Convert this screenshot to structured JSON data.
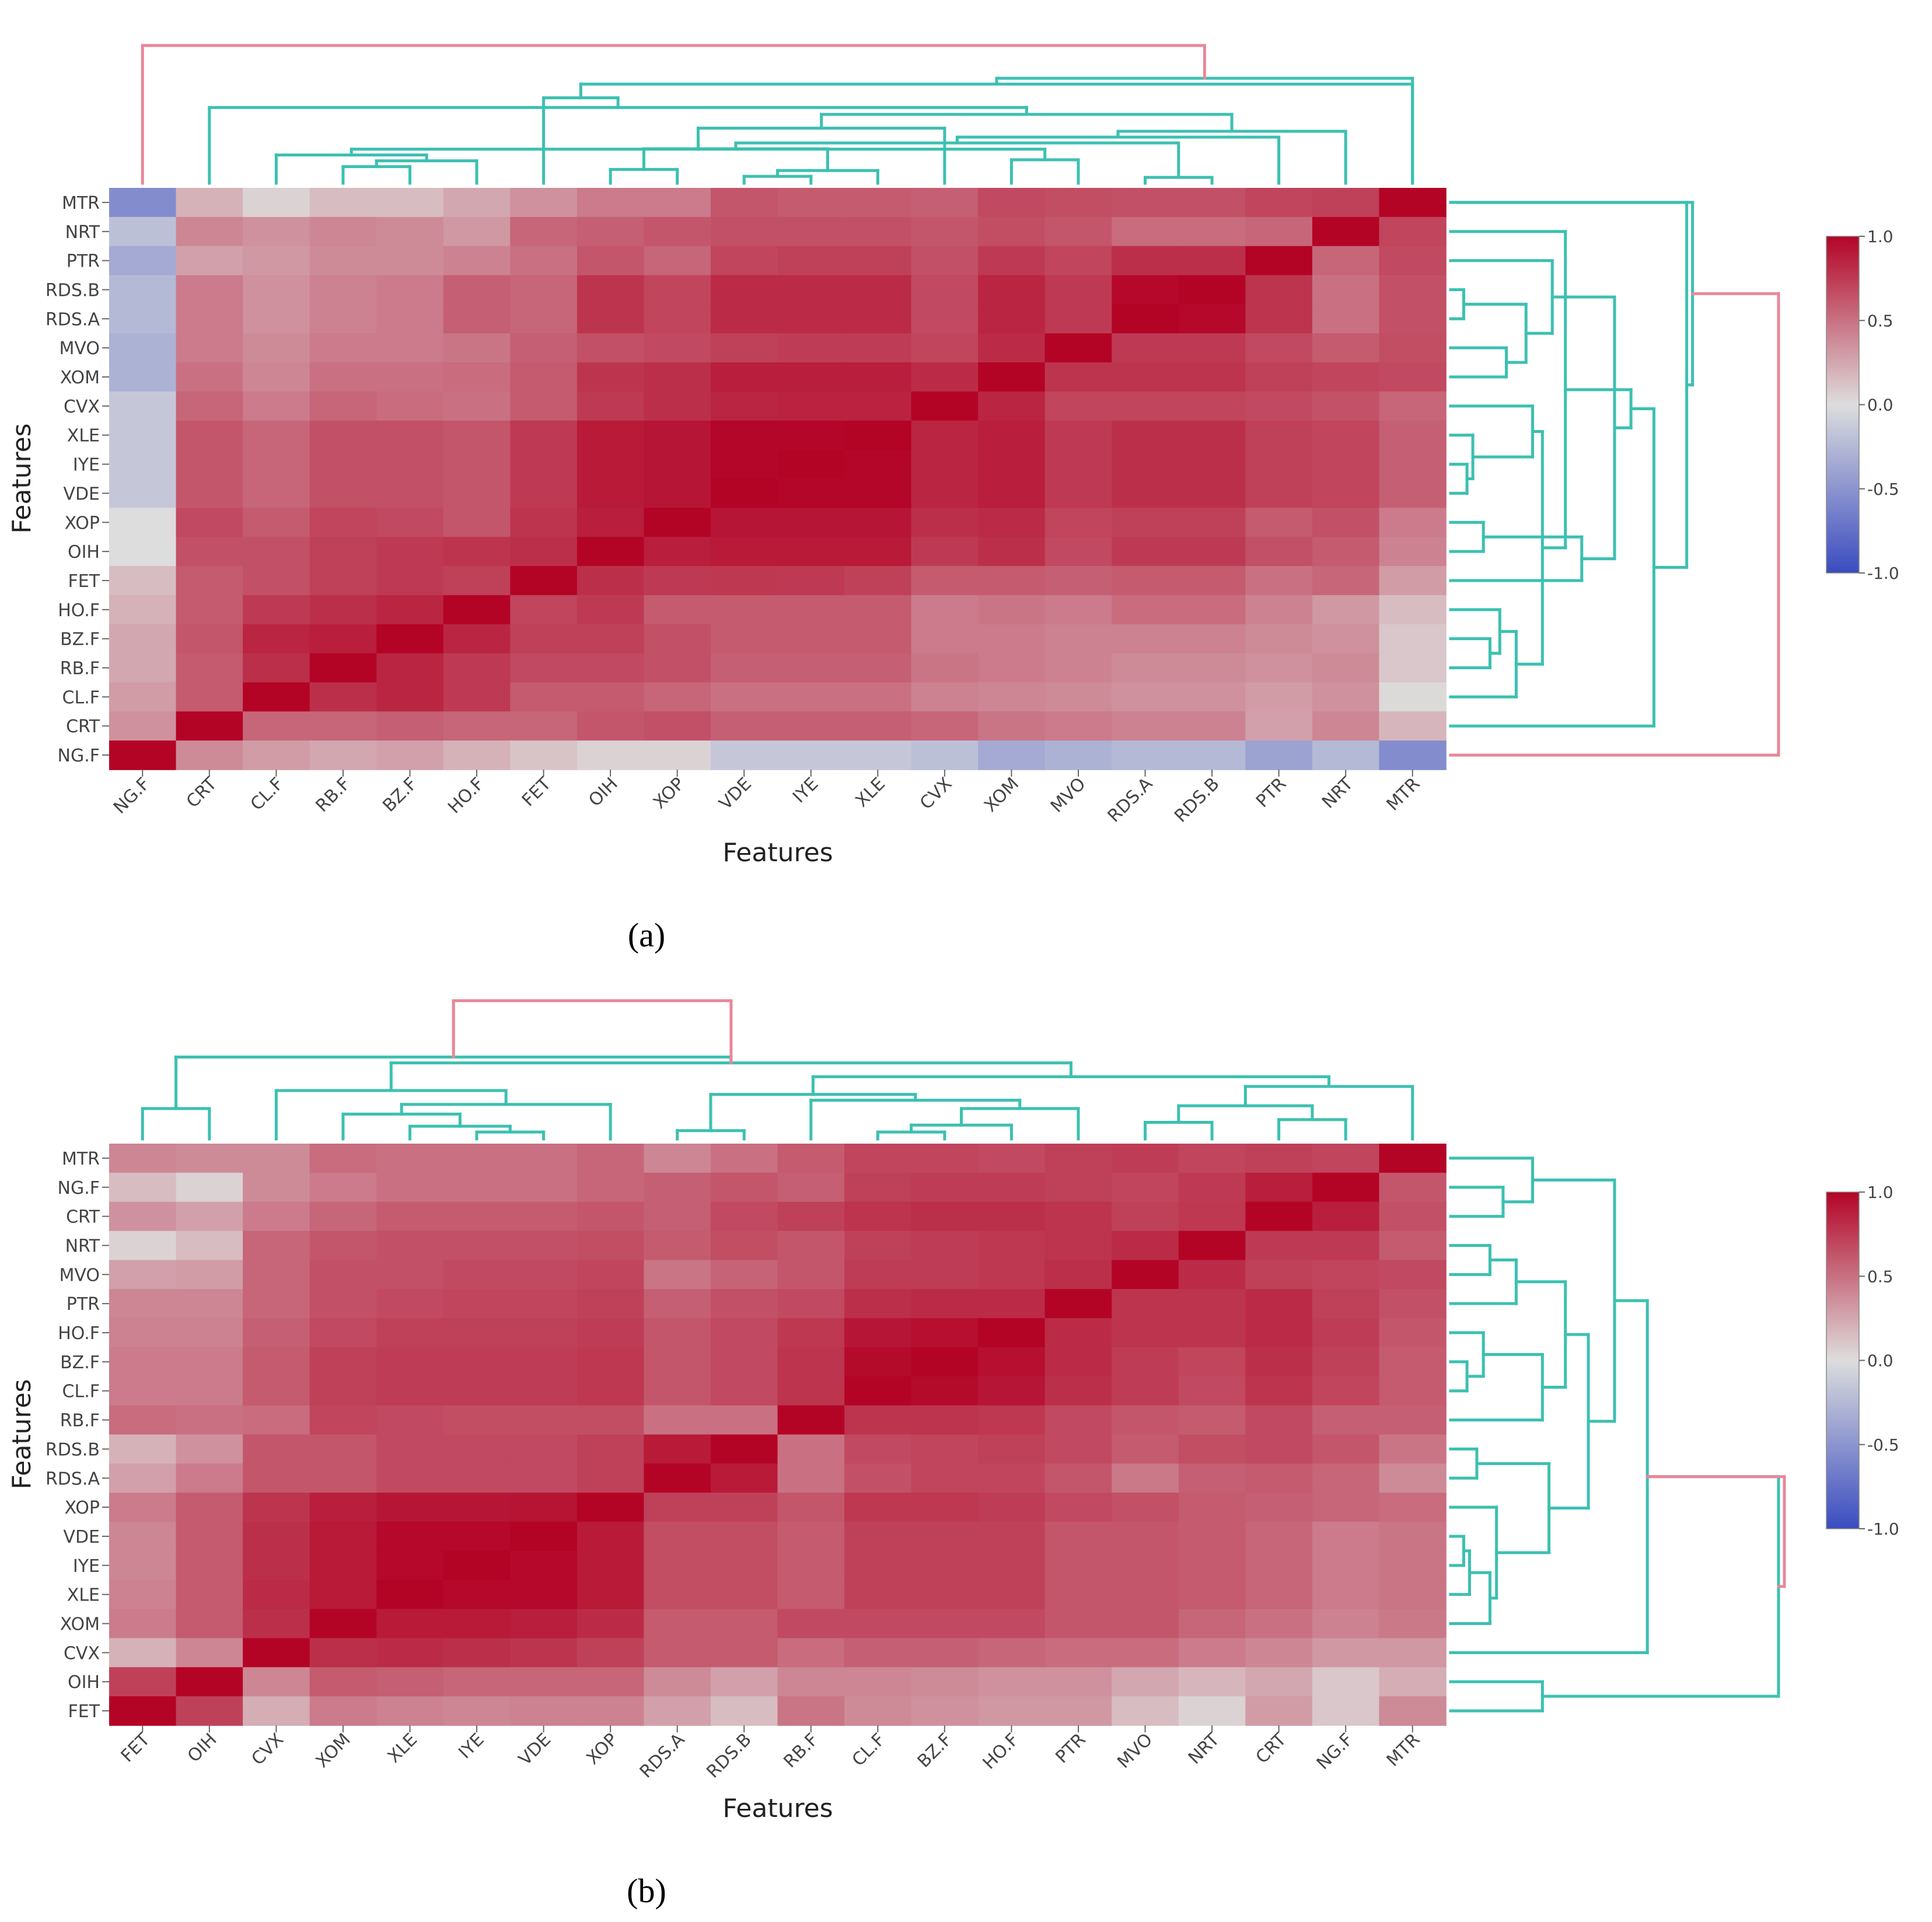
{
  "colors": {
    "teal": "#3cc0b1",
    "pink": "#e9869a",
    "low": "#3a4cc0",
    "mid": "#dddddd",
    "high": "#b40426"
  },
  "chart_data": [
    {
      "type": "heatmap",
      "panel_label": "(a)",
      "xlabel": "Features",
      "ylabel": "Features",
      "x_labels": [
        "NG.F",
        "CRT",
        "CL.F",
        "RB.F",
        "BZ.F",
        "HO.F",
        "FET",
        "OIH",
        "XOP",
        "VDE",
        "IYE",
        "XLE",
        "CVX",
        "XOM",
        "MVO",
        "RDS.A",
        "RDS.B",
        "PTR",
        "NRT",
        "MTR"
      ],
      "y_labels": [
        "MTR",
        "NRT",
        "PTR",
        "RDS.B",
        "RDS.A",
        "MVO",
        "XOM",
        "CVX",
        "XLE",
        "IYE",
        "VDE",
        "XOP",
        "OIH",
        "FET",
        "HO.F",
        "BZ.F",
        "RB.F",
        "CL.F",
        "CRT",
        "NG.F"
      ],
      "colorbar": {
        "min": -1.0,
        "max": 1.0,
        "ticks": [
          "1.0",
          "0.5",
          "0.0",
          "-0.5",
          "-1.0"
        ]
      },
      "values": [
        [
          -0.55,
          0.2,
          0.05,
          0.15,
          0.15,
          0.25,
          0.35,
          0.45,
          0.45,
          0.62,
          0.6,
          0.6,
          0.58,
          0.68,
          0.66,
          0.65,
          0.65,
          0.7,
          0.72,
          1.0
        ],
        [
          -0.2,
          0.4,
          0.35,
          0.4,
          0.38,
          0.32,
          0.55,
          0.58,
          0.62,
          0.65,
          0.65,
          0.65,
          0.62,
          0.66,
          0.62,
          0.52,
          0.52,
          0.55,
          1.0,
          0.7
        ],
        [
          -0.35,
          0.28,
          0.32,
          0.38,
          0.38,
          0.42,
          0.5,
          0.62,
          0.55,
          0.7,
          0.72,
          0.72,
          0.65,
          0.75,
          0.7,
          0.8,
          0.8,
          1.0,
          0.55,
          0.68
        ],
        [
          -0.25,
          0.45,
          0.35,
          0.42,
          0.45,
          0.58,
          0.55,
          0.78,
          0.7,
          0.82,
          0.82,
          0.82,
          0.68,
          0.85,
          0.75,
          0.98,
          1.0,
          0.78,
          0.5,
          0.65
        ],
        [
          -0.25,
          0.45,
          0.35,
          0.42,
          0.45,
          0.58,
          0.55,
          0.78,
          0.7,
          0.82,
          0.82,
          0.82,
          0.68,
          0.85,
          0.75,
          1.0,
          0.98,
          0.78,
          0.5,
          0.65
        ],
        [
          -0.3,
          0.45,
          0.38,
          0.45,
          0.45,
          0.48,
          0.58,
          0.65,
          0.68,
          0.72,
          0.74,
          0.74,
          0.7,
          0.82,
          1.0,
          0.75,
          0.75,
          0.68,
          0.6,
          0.66
        ],
        [
          -0.3,
          0.5,
          0.4,
          0.5,
          0.5,
          0.52,
          0.6,
          0.78,
          0.8,
          0.88,
          0.88,
          0.88,
          0.82,
          1.0,
          0.78,
          0.78,
          0.78,
          0.72,
          0.7,
          0.68
        ],
        [
          -0.15,
          0.55,
          0.45,
          0.55,
          0.52,
          0.5,
          0.6,
          0.75,
          0.8,
          0.85,
          0.86,
          0.86,
          1.0,
          0.85,
          0.7,
          0.7,
          0.7,
          0.68,
          0.64,
          0.55
        ],
        [
          -0.15,
          0.62,
          0.55,
          0.65,
          0.65,
          0.62,
          0.75,
          0.9,
          0.92,
          0.99,
          0.99,
          1.0,
          0.85,
          0.88,
          0.75,
          0.8,
          0.8,
          0.72,
          0.7,
          0.58
        ],
        [
          -0.15,
          0.62,
          0.55,
          0.65,
          0.65,
          0.62,
          0.75,
          0.9,
          0.92,
          0.99,
          1.0,
          0.99,
          0.85,
          0.88,
          0.75,
          0.8,
          0.8,
          0.72,
          0.7,
          0.58
        ],
        [
          -0.15,
          0.62,
          0.55,
          0.65,
          0.65,
          0.62,
          0.75,
          0.9,
          0.92,
          1.0,
          0.99,
          0.99,
          0.85,
          0.88,
          0.75,
          0.8,
          0.8,
          0.72,
          0.7,
          0.58
        ],
        [
          0.0,
          0.68,
          0.6,
          0.7,
          0.68,
          0.62,
          0.78,
          0.88,
          1.0,
          0.92,
          0.92,
          0.92,
          0.8,
          0.82,
          0.7,
          0.72,
          0.72,
          0.6,
          0.65,
          0.45
        ],
        [
          0.0,
          0.65,
          0.65,
          0.72,
          0.75,
          0.78,
          0.8,
          1.0,
          0.88,
          0.9,
          0.9,
          0.9,
          0.75,
          0.8,
          0.68,
          0.75,
          0.75,
          0.65,
          0.6,
          0.42
        ],
        [
          0.15,
          0.6,
          0.65,
          0.72,
          0.75,
          0.72,
          1.0,
          0.8,
          0.75,
          0.76,
          0.75,
          0.72,
          0.6,
          0.6,
          0.58,
          0.6,
          0.6,
          0.5,
          0.55,
          0.3
        ],
        [
          0.2,
          0.6,
          0.75,
          0.8,
          0.85,
          1.0,
          0.7,
          0.75,
          0.6,
          0.6,
          0.6,
          0.6,
          0.45,
          0.48,
          0.45,
          0.52,
          0.52,
          0.42,
          0.32,
          0.15
        ],
        [
          0.25,
          0.62,
          0.85,
          0.88,
          1.0,
          0.85,
          0.72,
          0.72,
          0.65,
          0.6,
          0.6,
          0.6,
          0.45,
          0.45,
          0.42,
          0.42,
          0.42,
          0.38,
          0.35,
          0.1
        ],
        [
          0.25,
          0.6,
          0.8,
          1.0,
          0.85,
          0.75,
          0.68,
          0.68,
          0.65,
          0.58,
          0.58,
          0.58,
          0.48,
          0.45,
          0.42,
          0.38,
          0.38,
          0.35,
          0.38,
          0.1
        ],
        [
          0.3,
          0.6,
          1.0,
          0.8,
          0.85,
          0.75,
          0.6,
          0.6,
          0.55,
          0.5,
          0.5,
          0.5,
          0.42,
          0.4,
          0.38,
          0.35,
          0.35,
          0.3,
          0.35,
          0.02
        ],
        [
          0.35,
          1.0,
          0.55,
          0.55,
          0.58,
          0.55,
          0.55,
          0.62,
          0.65,
          0.58,
          0.58,
          0.58,
          0.55,
          0.48,
          0.45,
          0.42,
          0.42,
          0.28,
          0.4,
          0.18
        ],
        [
          1.0,
          0.38,
          0.3,
          0.25,
          0.28,
          0.2,
          0.12,
          0.05,
          0.05,
          -0.15,
          -0.15,
          -0.15,
          -0.2,
          -0.35,
          -0.3,
          -0.25,
          -0.25,
          -0.4,
          -0.25,
          -0.55
        ]
      ]
    },
    {
      "type": "heatmap",
      "panel_label": "(b)",
      "xlabel": "Features",
      "ylabel": "Features",
      "x_labels": [
        "FET",
        "OIH",
        "CVX",
        "XOM",
        "XLE",
        "IYE",
        "VDE",
        "XOP",
        "RDS.A",
        "RDS.B",
        "RB.F",
        "CL.F",
        "BZ.F",
        "HO.F",
        "PTR",
        "MVO",
        "NRT",
        "CRT",
        "NG.F",
        "MTR"
      ],
      "y_labels": [
        "MTR",
        "NG.F",
        "CRT",
        "NRT",
        "MVO",
        "PTR",
        "HO.F",
        "BZ.F",
        "CL.F",
        "RB.F",
        "RDS.B",
        "RDS.A",
        "XOP",
        "VDE",
        "IYE",
        "XLE",
        "XOM",
        "CVX",
        "OIH",
        "FET"
      ],
      "colorbar": {
        "min": -1.0,
        "max": 1.0,
        "ticks": [
          "1.0",
          "0.5",
          "0.0",
          "-0.5",
          "-1.0"
        ]
      },
      "values": [
        [
          0.4,
          0.38,
          0.38,
          0.52,
          0.5,
          0.5,
          0.5,
          0.55,
          0.4,
          0.5,
          0.6,
          0.7,
          0.7,
          0.68,
          0.72,
          0.74,
          0.7,
          0.72,
          0.7,
          1.0
        ],
        [
          0.15,
          0.05,
          0.38,
          0.45,
          0.5,
          0.5,
          0.5,
          0.55,
          0.58,
          0.62,
          0.58,
          0.72,
          0.74,
          0.74,
          0.72,
          0.7,
          0.75,
          0.88,
          1.0,
          0.62
        ],
        [
          0.35,
          0.28,
          0.45,
          0.55,
          0.6,
          0.6,
          0.6,
          0.62,
          0.58,
          0.68,
          0.72,
          0.78,
          0.8,
          0.8,
          0.78,
          0.72,
          0.76,
          1.0,
          0.88,
          0.65
        ],
        [
          0.05,
          0.15,
          0.55,
          0.62,
          0.65,
          0.65,
          0.65,
          0.66,
          0.6,
          0.66,
          0.62,
          0.72,
          0.74,
          0.76,
          0.78,
          0.82,
          1.0,
          0.75,
          0.75,
          0.6
        ],
        [
          0.28,
          0.3,
          0.55,
          0.65,
          0.65,
          0.68,
          0.68,
          0.7,
          0.48,
          0.56,
          0.62,
          0.74,
          0.74,
          0.76,
          0.8,
          1.0,
          0.82,
          0.72,
          0.7,
          0.68
        ],
        [
          0.4,
          0.4,
          0.55,
          0.65,
          0.68,
          0.7,
          0.7,
          0.72,
          0.58,
          0.65,
          0.68,
          0.8,
          0.82,
          0.82,
          1.0,
          0.78,
          0.78,
          0.82,
          0.72,
          0.65
        ],
        [
          0.42,
          0.42,
          0.58,
          0.68,
          0.72,
          0.72,
          0.72,
          0.74,
          0.62,
          0.68,
          0.76,
          0.92,
          0.95,
          1.0,
          0.82,
          0.78,
          0.78,
          0.82,
          0.74,
          0.62
        ],
        [
          0.45,
          0.45,
          0.6,
          0.72,
          0.74,
          0.74,
          0.74,
          0.76,
          0.62,
          0.68,
          0.78,
          0.97,
          1.0,
          0.95,
          0.82,
          0.74,
          0.7,
          0.8,
          0.72,
          0.6
        ],
        [
          0.45,
          0.45,
          0.6,
          0.72,
          0.74,
          0.74,
          0.74,
          0.76,
          0.62,
          0.68,
          0.78,
          1.0,
          0.97,
          0.92,
          0.8,
          0.74,
          0.68,
          0.78,
          0.7,
          0.6
        ],
        [
          0.52,
          0.5,
          0.52,
          0.7,
          0.68,
          0.66,
          0.66,
          0.66,
          0.5,
          0.5,
          1.0,
          0.78,
          0.78,
          0.76,
          0.68,
          0.62,
          0.6,
          0.68,
          0.58,
          0.58
        ],
        [
          0.2,
          0.35,
          0.62,
          0.62,
          0.68,
          0.68,
          0.68,
          0.72,
          0.9,
          1.0,
          0.5,
          0.68,
          0.7,
          0.72,
          0.68,
          0.6,
          0.66,
          0.68,
          0.62,
          0.48
        ],
        [
          0.28,
          0.45,
          0.62,
          0.62,
          0.68,
          0.68,
          0.68,
          0.72,
          1.0,
          0.9,
          0.5,
          0.65,
          0.7,
          0.7,
          0.62,
          0.46,
          0.58,
          0.6,
          0.55,
          0.38
        ],
        [
          0.45,
          0.6,
          0.78,
          0.88,
          0.92,
          0.92,
          0.93,
          1.0,
          0.72,
          0.72,
          0.62,
          0.76,
          0.76,
          0.74,
          0.68,
          0.65,
          0.6,
          0.58,
          0.55,
          0.52
        ],
        [
          0.4,
          0.6,
          0.8,
          0.9,
          0.98,
          0.98,
          1.0,
          0.9,
          0.66,
          0.66,
          0.6,
          0.72,
          0.72,
          0.72,
          0.62,
          0.62,
          0.6,
          0.55,
          0.45,
          0.48
        ],
        [
          0.4,
          0.6,
          0.8,
          0.9,
          0.98,
          1.0,
          0.98,
          0.9,
          0.66,
          0.66,
          0.6,
          0.72,
          0.72,
          0.72,
          0.62,
          0.62,
          0.6,
          0.55,
          0.45,
          0.48
        ],
        [
          0.42,
          0.6,
          0.82,
          0.9,
          1.0,
          0.98,
          0.98,
          0.9,
          0.66,
          0.66,
          0.6,
          0.72,
          0.72,
          0.72,
          0.62,
          0.62,
          0.6,
          0.55,
          0.45,
          0.48
        ],
        [
          0.45,
          0.6,
          0.8,
          1.0,
          0.9,
          0.9,
          0.88,
          0.82,
          0.6,
          0.6,
          0.68,
          0.68,
          0.68,
          0.68,
          0.62,
          0.62,
          0.55,
          0.5,
          0.42,
          0.46
        ],
        [
          0.2,
          0.4,
          1.0,
          0.8,
          0.82,
          0.8,
          0.78,
          0.72,
          0.6,
          0.6,
          0.52,
          0.58,
          0.58,
          0.55,
          0.52,
          0.52,
          0.45,
          0.4,
          0.32,
          0.32
        ],
        [
          0.72,
          1.0,
          0.4,
          0.6,
          0.58,
          0.55,
          0.55,
          0.55,
          0.38,
          0.28,
          0.4,
          0.4,
          0.38,
          0.35,
          0.35,
          0.25,
          0.18,
          0.25,
          0.1,
          0.22
        ],
        [
          1.0,
          0.72,
          0.22,
          0.45,
          0.42,
          0.4,
          0.42,
          0.42,
          0.28,
          0.15,
          0.48,
          0.38,
          0.35,
          0.32,
          0.32,
          0.15,
          0.05,
          0.3,
          0.1,
          0.38
        ]
      ]
    }
  ]
}
